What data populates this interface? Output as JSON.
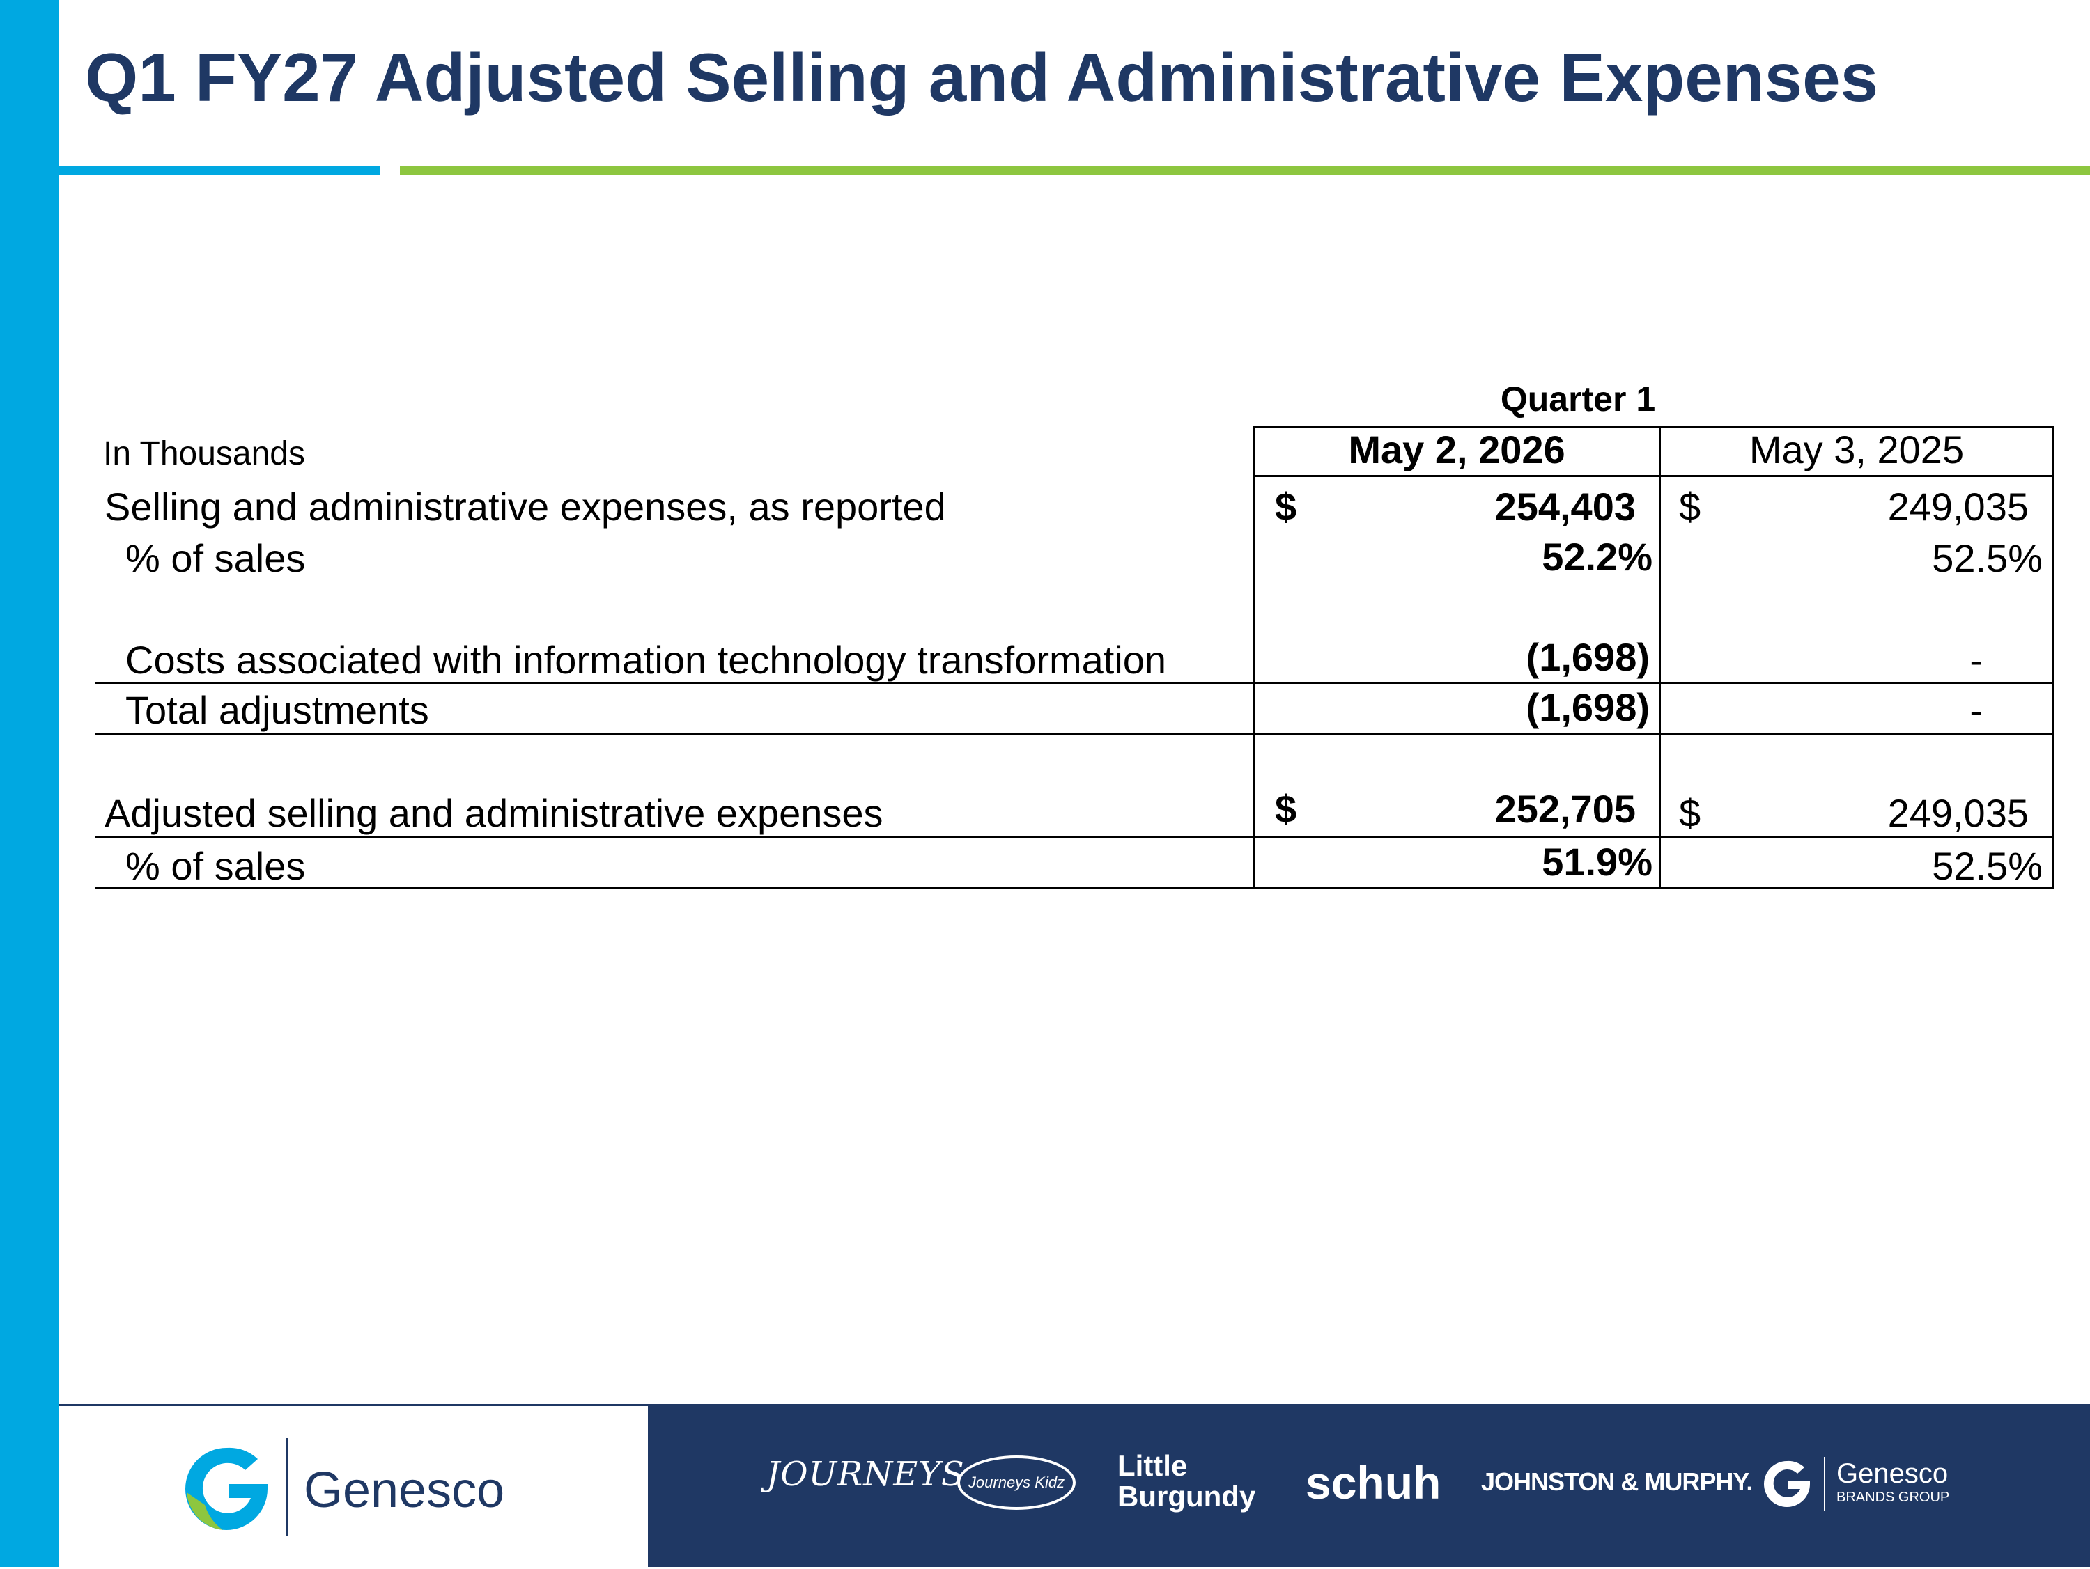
{
  "title": "Q1 FY27 Adjusted Selling and Administrative Expenses",
  "table": {
    "group_header": "Quarter 1",
    "units_label": "In Thousands",
    "col1_header": "May 2, 2026",
    "col2_header": "May 3, 2025",
    "rows": [
      {
        "label": "Selling and administrative expenses, as reported",
        "cur1": "$",
        "val1": "254,403",
        "cur2": "$",
        "val2": "249,035"
      },
      {
        "label": "% of sales",
        "val1": "52.2%",
        "val2": "52.5%"
      },
      {
        "label": "Costs associated with information technology transformation",
        "val1": "(1,698)",
        "val2": "-"
      },
      {
        "label": "Total adjustments",
        "val1": "(1,698)",
        "val2": "-"
      },
      {
        "label": "Adjusted selling and administrative expenses",
        "cur1": "$",
        "val1": "252,705",
        "cur2": "$",
        "val2": "249,035"
      },
      {
        "label": "% of sales",
        "val1": "51.9%",
        "val2": "52.5%"
      }
    ]
  },
  "footer": {
    "company": "Genesco",
    "brands": {
      "journeys": "JOURNEYS",
      "journeys_kidz": "Journeys Kidz",
      "little_burgundy_line1": "Little",
      "little_burgundy_line2": "Burgundy",
      "schuh": "schuh",
      "johnston_murphy": "JOHNSTON & MURPHY.",
      "genesco_brands_group_line1": "Genesco",
      "genesco_brands_group_line2": "BRANDS GROUP"
    }
  },
  "colors": {
    "title": "#1f3864",
    "accent_blue": "#00a8e1",
    "accent_green": "#8dc63f",
    "footer_navy": "#1f3864"
  }
}
